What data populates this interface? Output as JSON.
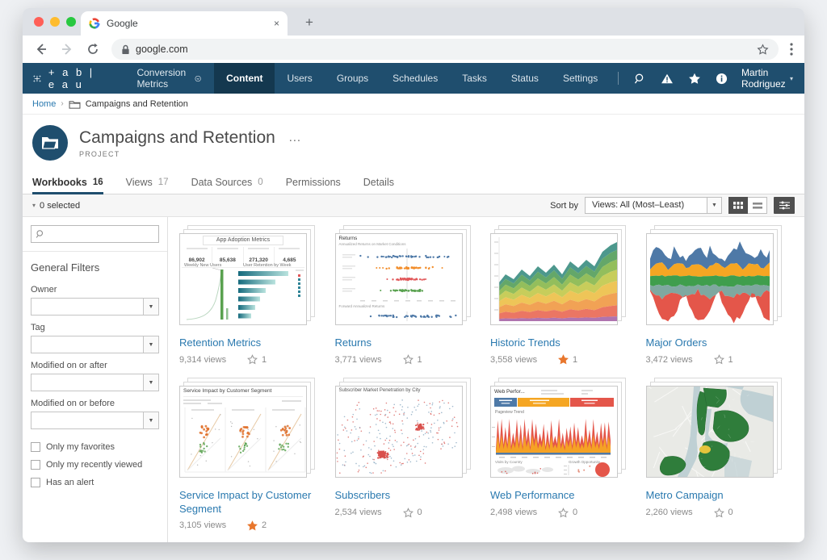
{
  "browser": {
    "tab_title": "Google",
    "new_tab_label": "+",
    "close_label": "×",
    "url": "google.com"
  },
  "nav": {
    "brand": "+ a b | e a u",
    "site_selector": "Conversion Metrics",
    "items": [
      "Content",
      "Users",
      "Groups",
      "Schedules",
      "Tasks",
      "Status",
      "Settings"
    ],
    "user": "Martin Rodriguez"
  },
  "breadcrumb": {
    "home": "Home",
    "current": "Campaigns and Retention"
  },
  "header": {
    "title": "Campaigns and Retention",
    "more_label": "…",
    "type_label": "PROJECT"
  },
  "tabs": [
    {
      "label": "Workbooks",
      "count": "16"
    },
    {
      "label": "Views",
      "count": "17"
    },
    {
      "label": "Data Sources",
      "count": "0"
    },
    {
      "label": "Permissions",
      "count": ""
    },
    {
      "label": "Details",
      "count": ""
    }
  ],
  "toolbar": {
    "selected": "0 selected",
    "sort_label": "Sort by",
    "sort_value": "Views: All (Most–Least)"
  },
  "sidebar": {
    "heading": "General Filters",
    "filters": [
      "Owner",
      "Tag",
      "Modified on or after",
      "Modified on or before"
    ],
    "checkboxes": [
      "Only my favorites",
      "Only my recently viewed",
      "Has an alert"
    ]
  },
  "cards": [
    {
      "title": "Retention Metrics",
      "views": "9,314 views",
      "fav_count": "1",
      "fav_filled": false,
      "thumb": {
        "title": "App Adoption Metrics",
        "kpis": [
          "86,902",
          "85,638",
          "271,320",
          "4,685"
        ],
        "left_label": "Weekly New Users",
        "right_label": "User Retention by Week"
      }
    },
    {
      "title": "Returns",
      "views": "3,771 views",
      "fav_count": "1",
      "fav_filled": false,
      "thumb": {
        "title": "Returns",
        "subtitle": "Annualized Returns on Market Conditions",
        "section": "Forward Annualized Returns"
      }
    },
    {
      "title": "Historic Trends",
      "views": "3,558 views",
      "fav_count": "1",
      "fav_filled": true
    },
    {
      "title": "Major Orders",
      "views": "3,472 views",
      "fav_count": "1",
      "fav_filled": false
    },
    {
      "title": "Service Impact by Customer Segment",
      "views": "3,105 views",
      "fav_count": "2",
      "fav_filled": true,
      "thumb": {
        "title": "Service Impact by Customer Segment"
      }
    },
    {
      "title": "Subscribers",
      "views": "2,534 views",
      "fav_count": "0",
      "fav_filled": false,
      "thumb": {
        "title": "Subscriber Market Penetration by City"
      }
    },
    {
      "title": "Web Performance",
      "views": "2,498 views",
      "fav_count": "0",
      "fav_filled": false,
      "thumb": {
        "title": "Web Perfor...",
        "trend_label": "Pageview Trend",
        "bottom_left": "Visits by Country",
        "bottom_right": "Growth Opportunity"
      }
    },
    {
      "title": "Metro Campaign",
      "views": "2,260 views",
      "fav_count": "0",
      "fav_filled": false
    }
  ]
}
